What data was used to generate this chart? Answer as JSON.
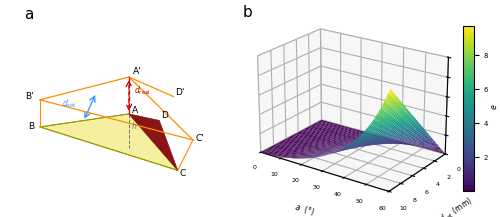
{
  "panel_a_label": "a",
  "panel_b_label": "b",
  "alpha_min": 0,
  "alpha_max": 60,
  "dset_min": 0,
  "dset_max": 10,
  "e_min": 0,
  "e_max": 10,
  "colormap": "viridis",
  "background": "#ffffff",
  "cb_ticks": [
    2,
    4,
    6,
    8
  ],
  "orange_color": "#FF8C00",
  "yellow_face": "#f5f0a0",
  "dark_red": "#8B1515",
  "blue_arrow": "#4499ff",
  "red_arrow": "#cc0000"
}
